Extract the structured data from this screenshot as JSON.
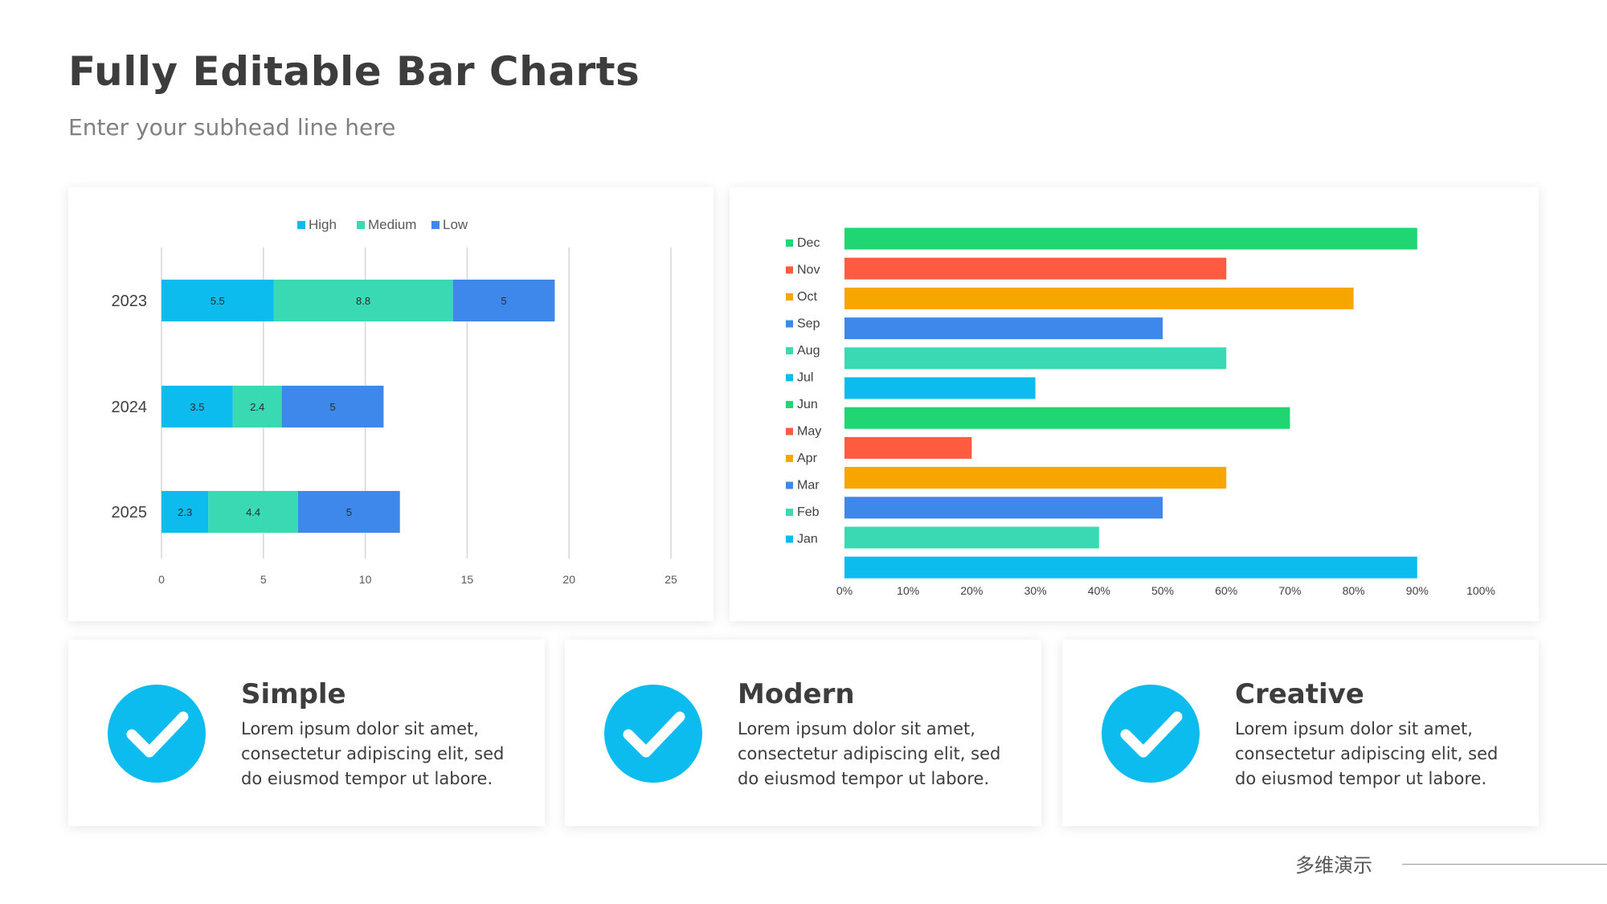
{
  "header": {
    "title": "Fully Editable Bar Charts",
    "subhead": "Enter your subhead line here"
  },
  "chart_data": [
    {
      "type": "bar",
      "orientation": "horizontal",
      "stacked": true,
      "categories": [
        "2023",
        "2024",
        "2025"
      ],
      "series": [
        {
          "name": "High",
          "color": "#0cbcef",
          "values": [
            5.5,
            3.5,
            2.3
          ]
        },
        {
          "name": "Medium",
          "color": "#39dab3",
          "values": [
            8.8,
            2.4,
            4.4
          ]
        },
        {
          "name": "Low",
          "color": "#3d88ea",
          "values": [
            5,
            5,
            5
          ]
        }
      ],
      "xlim": [
        0,
        25
      ],
      "xticks": [
        "0",
        "5",
        "10",
        "15",
        "20",
        "25"
      ],
      "legend": "top",
      "grid": true,
      "data_labels": true
    },
    {
      "type": "bar",
      "orientation": "horizontal",
      "legend_items": [
        {
          "label": "Dec",
          "color": "#1fd672"
        },
        {
          "label": "Nov",
          "color": "#ff5b41"
        },
        {
          "label": "Oct",
          "color": "#f7a600"
        },
        {
          "label": "Sep",
          "color": "#3d88ea"
        },
        {
          "label": "Aug",
          "color": "#39dab3"
        },
        {
          "label": "Jul",
          "color": "#0cbcef"
        },
        {
          "label": "Jun",
          "color": "#1fd672"
        },
        {
          "label": "May",
          "color": "#ff5b41"
        },
        {
          "label": "Apr",
          "color": "#f7a600"
        },
        {
          "label": "Mar",
          "color": "#3d88ea"
        },
        {
          "label": "Feb",
          "color": "#39dab3"
        },
        {
          "label": "Jan",
          "color": "#0cbcef"
        }
      ],
      "bars": [
        {
          "value": 90,
          "color": "#1fd672"
        },
        {
          "value": 60,
          "color": "#ff5b41"
        },
        {
          "value": 80,
          "color": "#f7a600"
        },
        {
          "value": 50,
          "color": "#3d88ea"
        },
        {
          "value": 60,
          "color": "#39dab3"
        },
        {
          "value": 30,
          "color": "#0cbcef"
        },
        {
          "value": 70,
          "color": "#1fd672"
        },
        {
          "value": 20,
          "color": "#ff5b41"
        },
        {
          "value": 60,
          "color": "#f7a600"
        },
        {
          "value": 50,
          "color": "#3d88ea"
        },
        {
          "value": 40,
          "color": "#39dab3"
        },
        {
          "value": 90,
          "color": "#0cbcef"
        }
      ],
      "xlim": [
        0,
        100
      ],
      "xticks": [
        "0%",
        "10%",
        "20%",
        "30%",
        "40%",
        "50%",
        "60%",
        "70%",
        "80%",
        "90%",
        "100%"
      ],
      "legend": "left",
      "grid": false
    }
  ],
  "features": [
    {
      "title": "Simple",
      "body": "Lorem ipsum dolor sit amet, consectetur adipiscing elit, sed do eiusmod tempor ut labore.",
      "icon": "check-circle-icon"
    },
    {
      "title": "Modern",
      "body": "Lorem ipsum dolor sit amet, consectetur adipiscing elit, sed do eiusmod tempor ut labore.",
      "icon": "check-circle-icon"
    },
    {
      "title": "Creative",
      "body": "Lorem ipsum dolor sit amet, consectetur adipiscing elit, sed do eiusmod tempor ut labore.",
      "icon": "check-circle-icon"
    }
  ],
  "colors": {
    "accent": "#0cbcef",
    "text": "#3d3d3d",
    "subtext": "#808080"
  },
  "footer": {
    "brand": "多维演示"
  }
}
